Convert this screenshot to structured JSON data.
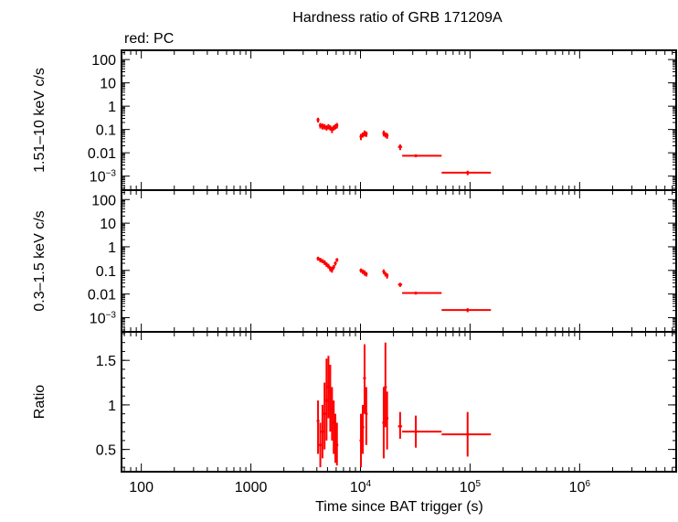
{
  "title": "Hardness ratio of GRB 171209A",
  "subtitle": "red: PC",
  "x_axis": {
    "label": "Time since BAT trigger (s)",
    "scale": "log",
    "range": [
      66,
      7600000
    ],
    "ticks": [
      {
        "value": 100,
        "label": "100",
        "sup": ""
      },
      {
        "value": 1000,
        "label": "1000",
        "sup": ""
      },
      {
        "value": 10000,
        "label": "10",
        "sup": "4"
      },
      {
        "value": 100000,
        "label": "10",
        "sup": "5"
      },
      {
        "value": 1000000,
        "label": "10",
        "sup": "6"
      }
    ]
  },
  "colors": {
    "series": "#ff0000",
    "axes": "#000000"
  },
  "chart_data": [
    {
      "type": "scatter",
      "ylabel": "1.51–10 keV c/s",
      "yscale": "log",
      "ylim": [
        0.00025,
        250
      ],
      "yticks": [
        {
          "value": 100,
          "label": "100",
          "sup": ""
        },
        {
          "value": 10,
          "label": "10",
          "sup": ""
        },
        {
          "value": 1,
          "label": "1",
          "sup": ""
        },
        {
          "value": 0.1,
          "label": "0.1",
          "sup": ""
        },
        {
          "value": 0.01,
          "label": "0.01",
          "sup": ""
        },
        {
          "value": 0.001,
          "label": "10",
          "sup": "−3"
        }
      ],
      "series": [
        {
          "color": "#ff0000",
          "points": [
            {
              "x": 4100,
              "y": 0.26,
              "x_lo": 4000,
              "x_hi": 4200,
              "y_lo": 0.2,
              "y_hi": 0.32
            },
            {
              "x": 4300,
              "y": 0.15,
              "x_lo": 4200,
              "x_hi": 4400,
              "y_lo": 0.11,
              "y_hi": 0.19
            },
            {
              "x": 4500,
              "y": 0.14,
              "x_lo": 4400,
              "x_hi": 4600,
              "y_lo": 0.1,
              "y_hi": 0.18
            },
            {
              "x": 4700,
              "y": 0.13,
              "x_lo": 4600,
              "x_hi": 4800,
              "y_lo": 0.1,
              "y_hi": 0.17
            },
            {
              "x": 4900,
              "y": 0.12,
              "x_lo": 4800,
              "x_hi": 5000,
              "y_lo": 0.09,
              "y_hi": 0.15
            },
            {
              "x": 5100,
              "y": 0.13,
              "x_lo": 5000,
              "x_hi": 5200,
              "y_lo": 0.1,
              "y_hi": 0.17
            },
            {
              "x": 5300,
              "y": 0.12,
              "x_lo": 5200,
              "x_hi": 5400,
              "y_lo": 0.09,
              "y_hi": 0.15
            },
            {
              "x": 5500,
              "y": 0.1,
              "x_lo": 5400,
              "x_hi": 5600,
              "y_lo": 0.07,
              "y_hi": 0.13
            },
            {
              "x": 5700,
              "y": 0.12,
              "x_lo": 5600,
              "x_hi": 5800,
              "y_lo": 0.09,
              "y_hi": 0.15
            },
            {
              "x": 5900,
              "y": 0.13,
              "x_lo": 5800,
              "x_hi": 6000,
              "y_lo": 0.1,
              "y_hi": 0.17
            },
            {
              "x": 6100,
              "y": 0.15,
              "x_lo": 6000,
              "x_hi": 6200,
              "y_lo": 0.11,
              "y_hi": 0.19
            },
            {
              "x": 10100,
              "y": 0.05,
              "x_lo": 9900,
              "x_hi": 10300,
              "y_lo": 0.035,
              "y_hi": 0.065
            },
            {
              "x": 10500,
              "y": 0.06,
              "x_lo": 10300,
              "x_hi": 10700,
              "y_lo": 0.045,
              "y_hi": 0.075
            },
            {
              "x": 10900,
              "y": 0.07,
              "x_lo": 10700,
              "x_hi": 11100,
              "y_lo": 0.05,
              "y_hi": 0.09
            },
            {
              "x": 11300,
              "y": 0.065,
              "x_lo": 11100,
              "x_hi": 11500,
              "y_lo": 0.048,
              "y_hi": 0.082
            },
            {
              "x": 16300,
              "y": 0.07,
              "x_lo": 16000,
              "x_hi": 16600,
              "y_lo": 0.05,
              "y_hi": 0.09
            },
            {
              "x": 16900,
              "y": 0.06,
              "x_lo": 16600,
              "x_hi": 17200,
              "y_lo": 0.045,
              "y_hi": 0.075
            },
            {
              "x": 17500,
              "y": 0.055,
              "x_lo": 17200,
              "x_hi": 17800,
              "y_lo": 0.04,
              "y_hi": 0.07
            },
            {
              "x": 23000,
              "y": 0.018,
              "x_lo": 22000,
              "x_hi": 24000,
              "y_lo": 0.013,
              "y_hi": 0.023
            },
            {
              "x": 32000,
              "y": 0.0075,
              "x_lo": 24000,
              "x_hi": 55000,
              "y_lo": 0.0065,
              "y_hi": 0.0085
            },
            {
              "x": 95000,
              "y": 0.0014,
              "x_lo": 55000,
              "x_hi": 155000,
              "y_lo": 0.0011,
              "y_hi": 0.0017
            }
          ]
        }
      ]
    },
    {
      "type": "scatter",
      "ylabel": "0.3–1.5 keV c/s",
      "yscale": "log",
      "ylim": [
        0.00025,
        250
      ],
      "yticks": [
        {
          "value": 100,
          "label": "100",
          "sup": ""
        },
        {
          "value": 10,
          "label": "10",
          "sup": ""
        },
        {
          "value": 1,
          "label": "1",
          "sup": ""
        },
        {
          "value": 0.1,
          "label": "0.1",
          "sup": ""
        },
        {
          "value": 0.01,
          "label": "0.01",
          "sup": ""
        },
        {
          "value": 0.001,
          "label": "10",
          "sup": "−3"
        }
      ],
      "series": [
        {
          "color": "#ff0000",
          "points": [
            {
              "x": 4100,
              "y": 0.32,
              "x_lo": 4000,
              "x_hi": 4200,
              "y_lo": 0.26,
              "y_hi": 0.38
            },
            {
              "x": 4300,
              "y": 0.28,
              "x_lo": 4200,
              "x_hi": 4400,
              "y_lo": 0.22,
              "y_hi": 0.34
            },
            {
              "x": 4500,
              "y": 0.25,
              "x_lo": 4400,
              "x_hi": 4600,
              "y_lo": 0.2,
              "y_hi": 0.3
            },
            {
              "x": 4700,
              "y": 0.22,
              "x_lo": 4600,
              "x_hi": 4800,
              "y_lo": 0.17,
              "y_hi": 0.27
            },
            {
              "x": 4900,
              "y": 0.18,
              "x_lo": 4800,
              "x_hi": 5000,
              "y_lo": 0.14,
              "y_hi": 0.22
            },
            {
              "x": 5100,
              "y": 0.15,
              "x_lo": 5000,
              "x_hi": 5200,
              "y_lo": 0.12,
              "y_hi": 0.19
            },
            {
              "x": 5300,
              "y": 0.12,
              "x_lo": 5200,
              "x_hi": 5400,
              "y_lo": 0.09,
              "y_hi": 0.15
            },
            {
              "x": 5500,
              "y": 0.11,
              "x_lo": 5400,
              "x_hi": 5600,
              "y_lo": 0.08,
              "y_hi": 0.14
            },
            {
              "x": 5700,
              "y": 0.14,
              "x_lo": 5600,
              "x_hi": 5800,
              "y_lo": 0.11,
              "y_hi": 0.17
            },
            {
              "x": 5900,
              "y": 0.2,
              "x_lo": 5800,
              "x_hi": 6000,
              "y_lo": 0.16,
              "y_hi": 0.24
            },
            {
              "x": 6100,
              "y": 0.28,
              "x_lo": 6000,
              "x_hi": 6200,
              "y_lo": 0.23,
              "y_hi": 0.33
            },
            {
              "x": 10100,
              "y": 0.1,
              "x_lo": 9900,
              "x_hi": 10300,
              "y_lo": 0.08,
              "y_hi": 0.12
            },
            {
              "x": 10500,
              "y": 0.09,
              "x_lo": 10300,
              "x_hi": 10700,
              "y_lo": 0.07,
              "y_hi": 0.11
            },
            {
              "x": 10900,
              "y": 0.08,
              "x_lo": 10700,
              "x_hi": 11100,
              "y_lo": 0.06,
              "y_hi": 0.1
            },
            {
              "x": 11300,
              "y": 0.07,
              "x_lo": 11100,
              "x_hi": 11500,
              "y_lo": 0.055,
              "y_hi": 0.085
            },
            {
              "x": 16300,
              "y": 0.09,
              "x_lo": 16000,
              "x_hi": 16600,
              "y_lo": 0.07,
              "y_hi": 0.11
            },
            {
              "x": 16900,
              "y": 0.07,
              "x_lo": 16600,
              "x_hi": 17200,
              "y_lo": 0.055,
              "y_hi": 0.085
            },
            {
              "x": 17500,
              "y": 0.06,
              "x_lo": 17200,
              "x_hi": 17800,
              "y_lo": 0.045,
              "y_hi": 0.075
            },
            {
              "x": 23000,
              "y": 0.025,
              "x_lo": 22000,
              "x_hi": 24000,
              "y_lo": 0.02,
              "y_hi": 0.03
            },
            {
              "x": 32000,
              "y": 0.011,
              "x_lo": 24000,
              "x_hi": 55000,
              "y_lo": 0.0095,
              "y_hi": 0.0125
            },
            {
              "x": 95000,
              "y": 0.0021,
              "x_lo": 55000,
              "x_hi": 155000,
              "y_lo": 0.0017,
              "y_hi": 0.0025
            }
          ]
        }
      ]
    },
    {
      "type": "scatter",
      "ylabel": "Ratio",
      "yscale": "linear",
      "ylim": [
        0.25,
        1.82
      ],
      "yticks": [
        {
          "value": 1.5,
          "label": "1.5",
          "sup": ""
        },
        {
          "value": 1,
          "label": "1",
          "sup": ""
        },
        {
          "value": 0.5,
          "label": "0.5",
          "sup": ""
        }
      ],
      "series": [
        {
          "color": "#ff0000",
          "points": [
            {
              "x": 4100,
              "y": 0.82,
              "x_lo": 4000,
              "x_hi": 4200,
              "y_lo": 0.45,
              "y_hi": 1.05
            },
            {
              "x": 4300,
              "y": 0.55,
              "x_lo": 4200,
              "x_hi": 4400,
              "y_lo": 0.3,
              "y_hi": 0.8
            },
            {
              "x": 4500,
              "y": 0.7,
              "x_lo": 4400,
              "x_hi": 4600,
              "y_lo": 0.4,
              "y_hi": 1.0
            },
            {
              "x": 4700,
              "y": 0.9,
              "x_lo": 4600,
              "x_hi": 4800,
              "y_lo": 0.5,
              "y_hi": 1.25
            },
            {
              "x": 4900,
              "y": 1.05,
              "x_lo": 4800,
              "x_hi": 5000,
              "y_lo": 0.6,
              "y_hi": 1.52
            },
            {
              "x": 5100,
              "y": 1.2,
              "x_lo": 5000,
              "x_hi": 5200,
              "y_lo": 0.85,
              "y_hi": 1.55
            },
            {
              "x": 5300,
              "y": 1.15,
              "x_lo": 5200,
              "x_hi": 5400,
              "y_lo": 0.7,
              "y_hi": 1.45
            },
            {
              "x": 5500,
              "y": 0.95,
              "x_lo": 5400,
              "x_hi": 5600,
              "y_lo": 0.6,
              "y_hi": 1.2
            },
            {
              "x": 5700,
              "y": 0.8,
              "x_lo": 5600,
              "x_hi": 5800,
              "y_lo": 0.45,
              "y_hi": 1.05
            },
            {
              "x": 5900,
              "y": 0.65,
              "x_lo": 5800,
              "x_hi": 6000,
              "y_lo": 0.35,
              "y_hi": 0.9
            },
            {
              "x": 6100,
              "y": 0.55,
              "x_lo": 6000,
              "x_hi": 6200,
              "y_lo": 0.32,
              "y_hi": 0.8
            },
            {
              "x": 10100,
              "y": 0.6,
              "x_lo": 9900,
              "x_hi": 10300,
              "y_lo": 0.3,
              "y_hi": 0.9
            },
            {
              "x": 10500,
              "y": 0.75,
              "x_lo": 10300,
              "x_hi": 10700,
              "y_lo": 0.45,
              "y_hi": 1.0
            },
            {
              "x": 10900,
              "y": 1.3,
              "x_lo": 10700,
              "x_hi": 11100,
              "y_lo": 0.9,
              "y_hi": 1.68
            },
            {
              "x": 11300,
              "y": 0.9,
              "x_lo": 11100,
              "x_hi": 11500,
              "y_lo": 0.55,
              "y_hi": 1.2
            },
            {
              "x": 16300,
              "y": 0.8,
              "x_lo": 16000,
              "x_hi": 16600,
              "y_lo": 0.4,
              "y_hi": 1.2
            },
            {
              "x": 16900,
              "y": 1.2,
              "x_lo": 16600,
              "x_hi": 17200,
              "y_lo": 0.75,
              "y_hi": 1.7
            },
            {
              "x": 17500,
              "y": 0.85,
              "x_lo": 17200,
              "x_hi": 17800,
              "y_lo": 0.5,
              "y_hi": 1.15
            },
            {
              "x": 23000,
              "y": 0.76,
              "x_lo": 22000,
              "x_hi": 24000,
              "y_lo": 0.62,
              "y_hi": 0.92
            },
            {
              "x": 32000,
              "y": 0.7,
              "x_lo": 24000,
              "x_hi": 55000,
              "y_lo": 0.52,
              "y_hi": 0.88
            },
            {
              "x": 95000,
              "y": 0.67,
              "x_lo": 55000,
              "x_hi": 155000,
              "y_lo": 0.42,
              "y_hi": 0.92
            }
          ]
        }
      ]
    }
  ]
}
